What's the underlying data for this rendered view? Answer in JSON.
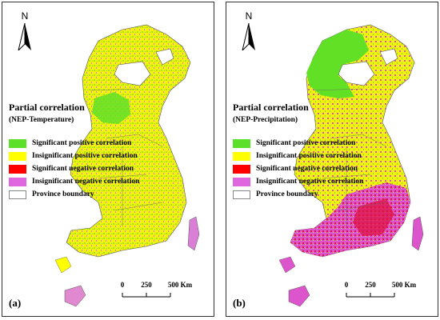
{
  "north_label": "N",
  "panels": [
    {
      "id": "a",
      "label": "(a)",
      "legend_title": "Partial correlation",
      "legend_subtitle": "(NEP-Temperature)",
      "dominant_color": "#f2f20f",
      "secondary_color": "#61e026"
    },
    {
      "id": "b",
      "label": "(b)",
      "legend_title": "Partial correlation",
      "legend_subtitle": "(NEP-Precipitation)",
      "dominant_color": "#dd55cc",
      "secondary_color": "#dd1144"
    }
  ],
  "legend_items": [
    {
      "label": "Significant positive correlation",
      "color": "#5ce02a"
    },
    {
      "label": "Insignificant positive correlation",
      "color": "#ffff00"
    },
    {
      "label": "Significant negative correlation",
      "color": "#ff0000"
    },
    {
      "label": "Insignificant negative correlation",
      "color": "#e066e0"
    },
    {
      "label": "Province boundary",
      "color": "#ffffff"
    }
  ],
  "scale": {
    "ticks": [
      "0",
      "250",
      "500 Km"
    ]
  }
}
